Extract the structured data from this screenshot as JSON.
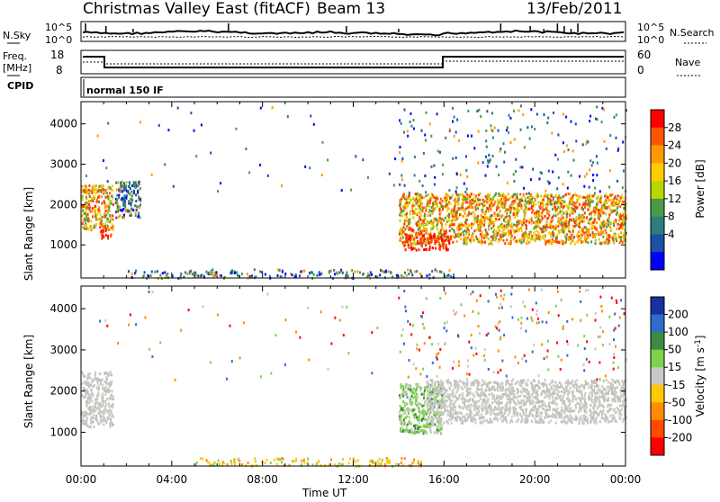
{
  "header": {
    "title": "Christmas Valley East (fitACF)",
    "beam": "Beam 13",
    "date": "13/Feb/2011"
  },
  "noise_panel": {
    "left_label": "N.Sky",
    "left_ticks": [
      "10^5",
      "10^0"
    ],
    "right_label": "N.Search",
    "right_ticks": [
      "10^5",
      "10^0"
    ]
  },
  "freq_panel": {
    "left_label_1": "Freq.",
    "left_label_2": "[MHz]",
    "left_ticks": [
      "18",
      "8"
    ],
    "right_label": "Nave",
    "right_ticks": [
      "60",
      "0"
    ]
  },
  "cpid_panel": {
    "label": "CPID",
    "value": "normal 150 IF"
  },
  "x_axis": {
    "label": "Time UT",
    "ticks": [
      "00:00",
      "04:00",
      "08:00",
      "12:00",
      "16:00",
      "20:00",
      "00:00"
    ]
  },
  "chart_data": [
    {
      "type": "heatmap",
      "panel": "power",
      "ylabel": "Slant Range [km]",
      "ylim": [
        180,
        4550
      ],
      "xlim_hours": [
        0,
        24
      ],
      "yticks": [
        "1000",
        "2000",
        "3000",
        "4000"
      ],
      "colorbar": {
        "label": "Power [dB]",
        "ticks": [
          "28",
          "24",
          "20",
          "16",
          "12",
          "8",
          "4"
        ],
        "colors": [
          "#ff0000",
          "#ff5500",
          "#ff9900",
          "#ffcc00",
          "#b9d600",
          "#4a9a4a",
          "#2e7d7d",
          "#1d4fa6",
          "#0000ff"
        ]
      },
      "regions": [
        {
          "t": [
            0.0,
            1.4
          ],
          "r": [
            1400,
            2500
          ],
          "level": "high"
        },
        {
          "t": [
            0.8,
            1.3
          ],
          "r": [
            1150,
            1400
          ],
          "level": "max"
        },
        {
          "t": [
            1.5,
            2.6
          ],
          "r": [
            1700,
            2600
          ],
          "level": "low"
        },
        {
          "t": [
            14.0,
            24.0
          ],
          "r": [
            1050,
            2300
          ],
          "level": "high"
        },
        {
          "t": [
            14.2,
            16.2
          ],
          "r": [
            900,
            1300
          ],
          "level": "max"
        },
        {
          "t": [
            2.0,
            16.5
          ],
          "r": [
            200,
            420
          ],
          "level": "low"
        }
      ]
    },
    {
      "type": "heatmap",
      "panel": "velocity",
      "ylabel": "Slant Range [km]",
      "ylim": [
        180,
        4550
      ],
      "xlim_hours": [
        0,
        24
      ],
      "yticks": [
        "1000",
        "2000",
        "3000",
        "4000"
      ],
      "colorbar": {
        "label": "Velocity [m s^-1]",
        "ticks": [
          "200",
          "100",
          "50",
          "15",
          "-15",
          "-50",
          "-100",
          "-200"
        ],
        "colors": [
          "#1a2fa0",
          "#2f6ccf",
          "#3f8a3f",
          "#7fd24c",
          "#c8c8c4",
          "#ffc800",
          "#ff8c00",
          "#ff4a00",
          "#ff0000"
        ]
      },
      "regions": [
        {
          "t": [
            0.0,
            1.4
          ],
          "r": [
            1150,
            2500
          ],
          "level": "ground"
        },
        {
          "t": [
            14.0,
            15.9
          ],
          "r": [
            1000,
            2200
          ],
          "level": "positive"
        },
        {
          "t": [
            15.2,
            24.0
          ],
          "r": [
            1250,
            2300
          ],
          "level": "ground"
        },
        {
          "t": [
            5.0,
            15.0
          ],
          "r": [
            200,
            400
          ],
          "level": "negative"
        }
      ]
    }
  ],
  "colors": {
    "axis": "#000000",
    "ground_scatter": "#c8c8c4"
  }
}
